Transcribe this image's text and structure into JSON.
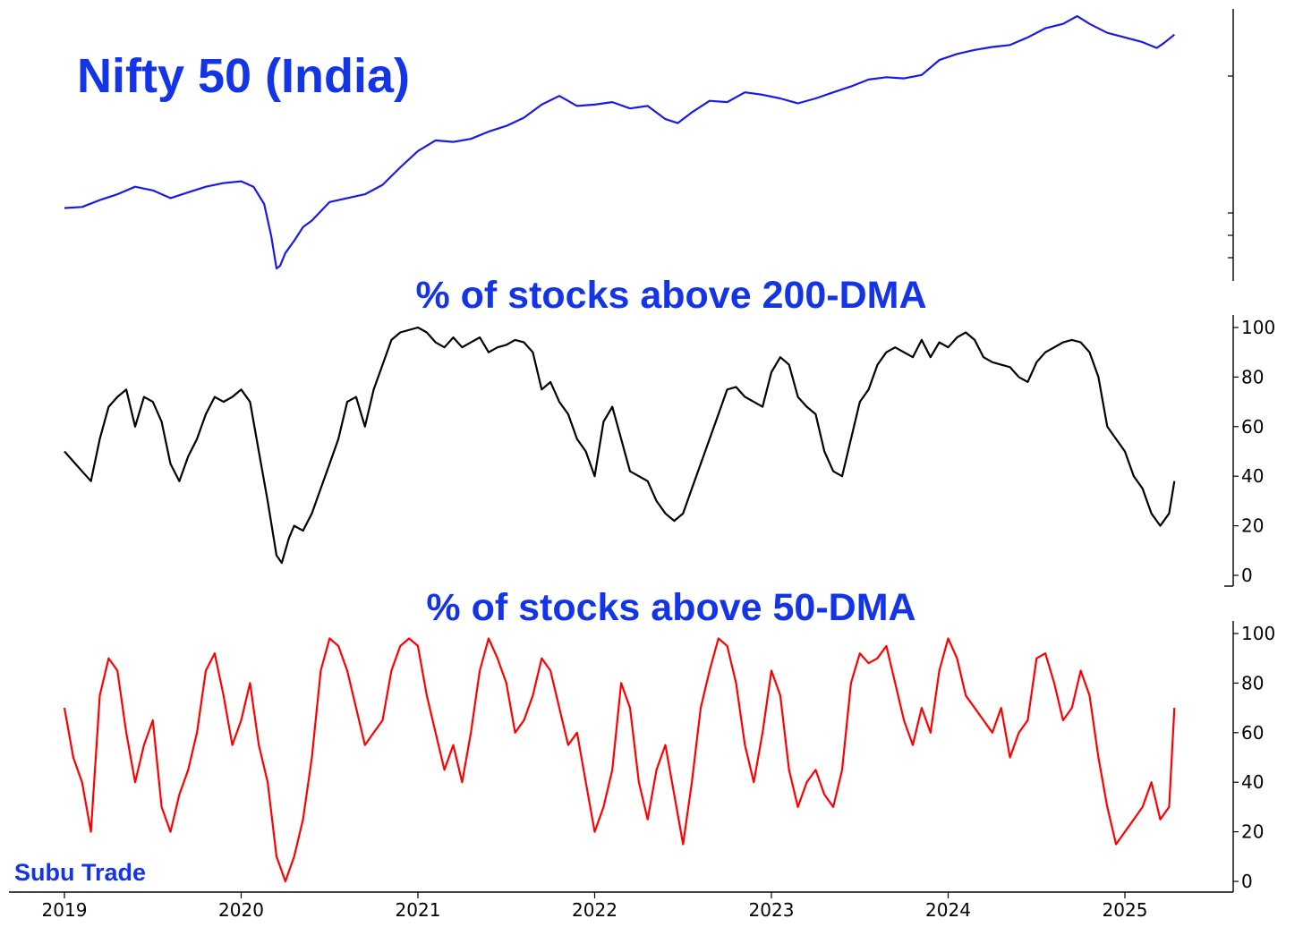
{
  "colors": {
    "title": "#1434e8",
    "nifty": "#1a1ae6",
    "dma200": "#000000",
    "dma50": "#ff0000"
  },
  "watermark": "Subu Trade",
  "x_axis": {
    "ticks": [
      "2019",
      "2020",
      "2021",
      "2022",
      "2023",
      "2024",
      "2025"
    ]
  },
  "chart_data": [
    {
      "type": "line",
      "title": "Nifty 50 (India)",
      "y_scale": "log",
      "series": [
        {
          "color": "#1a1ae6",
          "x": [
            2019.0,
            2019.1,
            2019.2,
            2019.3,
            2019.4,
            2019.5,
            2019.6,
            2019.7,
            2019.8,
            2019.9,
            2020.0,
            2020.07,
            2020.13,
            2020.17,
            2020.2,
            2020.22,
            2020.25,
            2020.3,
            2020.35,
            2020.4,
            2020.5,
            2020.6,
            2020.7,
            2020.8,
            2020.9,
            2021.0,
            2021.1,
            2021.2,
            2021.3,
            2021.4,
            2021.5,
            2021.6,
            2021.7,
            2021.8,
            2021.9,
            2022.0,
            2022.1,
            2022.2,
            2022.3,
            2022.4,
            2022.47,
            2022.55,
            2022.65,
            2022.75,
            2022.85,
            2022.95,
            2023.05,
            2023.15,
            2023.25,
            2023.35,
            2023.45,
            2023.55,
            2023.65,
            2023.75,
            2023.85,
            2023.95,
            2024.05,
            2024.15,
            2024.25,
            2024.35,
            2024.45,
            2024.55,
            2024.65,
            2024.73,
            2024.8,
            2024.9,
            2025.0,
            2025.1,
            2025.18,
            2025.22,
            2025.28
          ],
          "y": [
            10800,
            10850,
            11200,
            11500,
            11900,
            11700,
            11300,
            11600,
            11900,
            12100,
            12200,
            11900,
            11000,
            9500,
            8200,
            8300,
            8800,
            9300,
            9900,
            10200,
            11100,
            11300,
            11500,
            12000,
            13000,
            14000,
            14700,
            14600,
            14800,
            15300,
            15700,
            16300,
            17300,
            18000,
            17200,
            17300,
            17500,
            17000,
            17200,
            16200,
            15900,
            16700,
            17600,
            17500,
            18300,
            18100,
            17800,
            17400,
            17800,
            18300,
            18800,
            19400,
            19600,
            19500,
            19800,
            21200,
            21800,
            22200,
            22500,
            22700,
            23500,
            24500,
            25000,
            25900,
            25000,
            24000,
            23500,
            23000,
            22400,
            22900,
            23800
          ]
        }
      ]
    },
    {
      "type": "line",
      "title": "% of stocks above 200-DMA",
      "ylim": [
        0,
        100
      ],
      "yticks": [
        "0",
        "20",
        "40",
        "60",
        "80",
        "100"
      ],
      "series": [
        {
          "color": "#000000",
          "x": [
            2019.0,
            2019.05,
            2019.1,
            2019.15,
            2019.2,
            2019.25,
            2019.3,
            2019.35,
            2019.4,
            2019.45,
            2019.5,
            2019.55,
            2019.6,
            2019.65,
            2019.7,
            2019.75,
            2019.8,
            2019.85,
            2019.9,
            2019.95,
            2020.0,
            2020.05,
            2020.1,
            2020.15,
            2020.2,
            2020.23,
            2020.27,
            2020.3,
            2020.35,
            2020.4,
            2020.45,
            2020.5,
            2020.55,
            2020.6,
            2020.65,
            2020.7,
            2020.75,
            2020.8,
            2020.85,
            2020.9,
            2021.0,
            2021.05,
            2021.1,
            2021.15,
            2021.2,
            2021.25,
            2021.3,
            2021.35,
            2021.4,
            2021.45,
            2021.5,
            2021.55,
            2021.6,
            2021.65,
            2021.7,
            2021.75,
            2021.8,
            2021.85,
            2021.9,
            2021.95,
            2022.0,
            2022.05,
            2022.1,
            2022.15,
            2022.2,
            2022.25,
            2022.3,
            2022.35,
            2022.4,
            2022.45,
            2022.5,
            2022.55,
            2022.6,
            2022.65,
            2022.7,
            2022.75,
            2022.8,
            2022.85,
            2022.9,
            2022.95,
            2023.0,
            2023.05,
            2023.1,
            2023.15,
            2023.2,
            2023.25,
            2023.3,
            2023.35,
            2023.4,
            2023.45,
            2023.5,
            2023.55,
            2023.6,
            2023.65,
            2023.7,
            2023.75,
            2023.8,
            2023.85,
            2023.9,
            2023.95,
            2024.0,
            2024.05,
            2024.1,
            2024.15,
            2024.2,
            2024.25,
            2024.3,
            2024.35,
            2024.4,
            2024.45,
            2024.5,
            2024.55,
            2024.6,
            2024.65,
            2024.7,
            2024.75,
            2024.8,
            2024.85,
            2024.9,
            2024.95,
            2025.0,
            2025.05,
            2025.1,
            2025.15,
            2025.2,
            2025.25,
            2025.28
          ],
          "y": [
            50,
            46,
            42,
            38,
            55,
            68,
            72,
            75,
            60,
            72,
            70,
            62,
            45,
            38,
            48,
            55,
            65,
            72,
            70,
            72,
            75,
            70,
            50,
            30,
            8,
            5,
            15,
            20,
            18,
            25,
            35,
            45,
            55,
            70,
            72,
            60,
            75,
            85,
            95,
            98,
            100,
            98,
            94,
            92,
            96,
            92,
            94,
            96,
            90,
            92,
            93,
            95,
            94,
            90,
            75,
            78,
            70,
            65,
            55,
            50,
            40,
            62,
            68,
            55,
            42,
            40,
            38,
            30,
            25,
            22,
            25,
            35,
            45,
            55,
            65,
            75,
            76,
            72,
            70,
            68,
            82,
            88,
            85,
            72,
            68,
            65,
            50,
            42,
            40,
            55,
            70,
            75,
            85,
            90,
            92,
            90,
            88,
            95,
            88,
            94,
            92,
            96,
            98,
            95,
            88,
            86,
            85,
            84,
            80,
            78,
            86,
            90,
            92,
            94,
            95,
            94,
            90,
            80,
            60,
            55,
            50,
            40,
            35,
            25,
            20,
            25,
            38
          ]
        }
      ]
    },
    {
      "type": "line",
      "title": "% of stocks above 50-DMA",
      "ylim": [
        0,
        100
      ],
      "yticks": [
        "0",
        "20",
        "40",
        "60",
        "80",
        "100"
      ],
      "series": [
        {
          "color": "#ff0000",
          "x": [
            2019.0,
            2019.05,
            2019.1,
            2019.15,
            2019.2,
            2019.25,
            2019.3,
            2019.35,
            2019.4,
            2019.45,
            2019.5,
            2019.55,
            2019.6,
            2019.65,
            2019.7,
            2019.75,
            2019.8,
            2019.85,
            2019.9,
            2019.95,
            2020.0,
            2020.05,
            2020.1,
            2020.15,
            2020.2,
            2020.25,
            2020.3,
            2020.35,
            2020.4,
            2020.45,
            2020.5,
            2020.55,
            2020.6,
            2020.65,
            2020.7,
            2020.75,
            2020.8,
            2020.85,
            2020.9,
            2020.95,
            2021.0,
            2021.05,
            2021.1,
            2021.15,
            2021.2,
            2021.25,
            2021.3,
            2021.35,
            2021.4,
            2021.45,
            2021.5,
            2021.55,
            2021.6,
            2021.65,
            2021.7,
            2021.75,
            2021.8,
            2021.85,
            2021.9,
            2021.95,
            2022.0,
            2022.05,
            2022.1,
            2022.15,
            2022.2,
            2022.25,
            2022.3,
            2022.35,
            2022.4,
            2022.45,
            2022.5,
            2022.55,
            2022.6,
            2022.65,
            2022.7,
            2022.75,
            2022.8,
            2022.85,
            2022.9,
            2022.95,
            2023.0,
            2023.05,
            2023.1,
            2023.15,
            2023.2,
            2023.25,
            2023.3,
            2023.35,
            2023.4,
            2023.45,
            2023.5,
            2023.55,
            2023.6,
            2023.65,
            2023.7,
            2023.75,
            2023.8,
            2023.85,
            2023.9,
            2023.95,
            2024.0,
            2024.05,
            2024.1,
            2024.15,
            2024.2,
            2024.25,
            2024.3,
            2024.35,
            2024.4,
            2024.45,
            2024.5,
            2024.55,
            2024.6,
            2024.65,
            2024.7,
            2024.75,
            2024.8,
            2024.85,
            2024.9,
            2024.95,
            2025.0,
            2025.05,
            2025.1,
            2025.15,
            2025.2,
            2025.25,
            2025.28
          ],
          "y": [
            70,
            50,
            40,
            20,
            75,
            90,
            85,
            60,
            40,
            55,
            65,
            30,
            20,
            35,
            45,
            60,
            85,
            92,
            75,
            55,
            65,
            80,
            55,
            40,
            10,
            0,
            10,
            25,
            50,
            85,
            98,
            95,
            85,
            70,
            55,
            60,
            65,
            85,
            95,
            98,
            95,
            75,
            60,
            45,
            55,
            40,
            60,
            85,
            98,
            90,
            80,
            60,
            65,
            75,
            90,
            85,
            70,
            55,
            60,
            40,
            20,
            30,
            45,
            80,
            70,
            40,
            25,
            45,
            55,
            35,
            15,
            40,
            70,
            85,
            98,
            95,
            80,
            55,
            40,
            60,
            85,
            75,
            45,
            30,
            40,
            45,
            35,
            30,
            45,
            80,
            92,
            88,
            90,
            95,
            80,
            65,
            55,
            70,
            60,
            85,
            98,
            90,
            75,
            70,
            65,
            60,
            70,
            50,
            60,
            65,
            90,
            92,
            80,
            65,
            70,
            85,
            75,
            50,
            30,
            15,
            20,
            25,
            30,
            40,
            25,
            30,
            70
          ]
        }
      ]
    }
  ]
}
